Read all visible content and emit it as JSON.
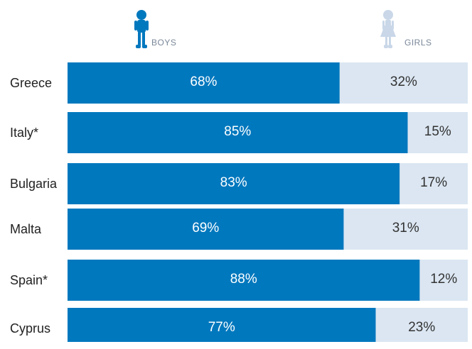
{
  "chart_data": {
    "type": "bar",
    "orientation": "horizontal",
    "stacked": true,
    "percent_stacked": true,
    "categories": [
      "Greece",
      "Italy*",
      "Bulgaria",
      "Malta",
      "Spain*",
      "Cyprus"
    ],
    "series": [
      {
        "name": "BOYS",
        "color": "#0078be",
        "values": [
          68,
          85,
          83,
          69,
          88,
          77
        ],
        "labels": [
          "68%",
          "85%",
          "83%",
          "69%",
          "88%",
          "77%"
        ],
        "icon": "boy-figure-icon"
      },
      {
        "name": "GIRLS",
        "color": "#dbe6f2",
        "values": [
          32,
          15,
          17,
          31,
          12,
          23
        ],
        "labels": [
          "32%",
          "15%",
          "17%",
          "31%",
          "12%",
          "23%"
        ],
        "icon": "girl-figure-icon"
      }
    ],
    "xlim": [
      0,
      100
    ],
    "grid": false,
    "legend_position": "top"
  }
}
